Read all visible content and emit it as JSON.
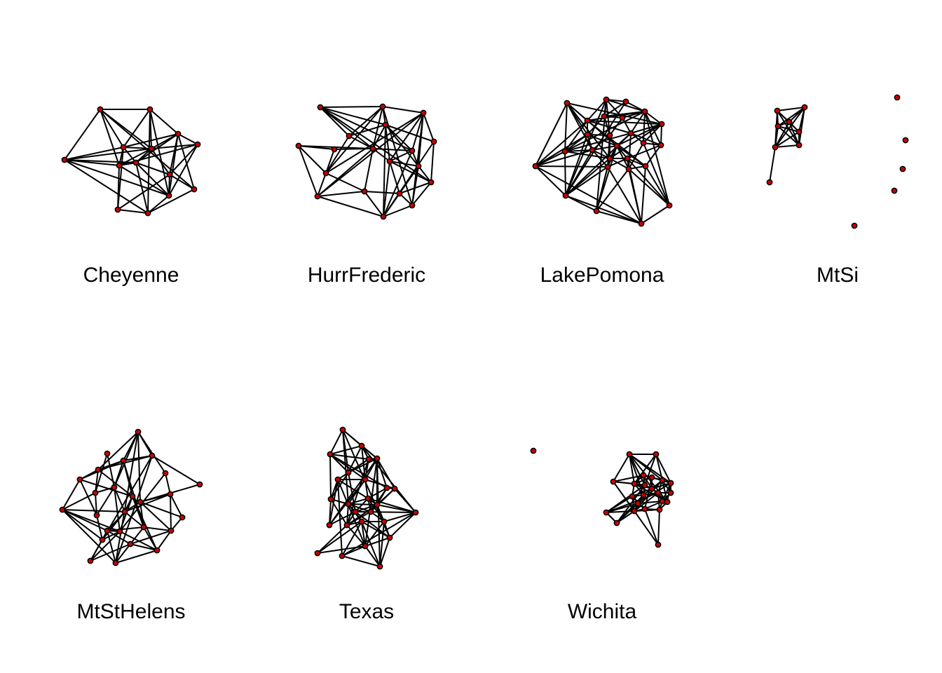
{
  "figure": {
    "node_fill": "#cc0000",
    "node_stroke": "#000000",
    "edge_color": "#000000"
  },
  "panels": [
    {
      "label": "Cheyenne"
    },
    {
      "label": "HurrFrederic"
    },
    {
      "label": "LakePomona"
    },
    {
      "label": "MtSi"
    },
    {
      "label": "MtStHelens"
    },
    {
      "label": "Texas"
    },
    {
      "label": "Wichita"
    }
  ]
}
